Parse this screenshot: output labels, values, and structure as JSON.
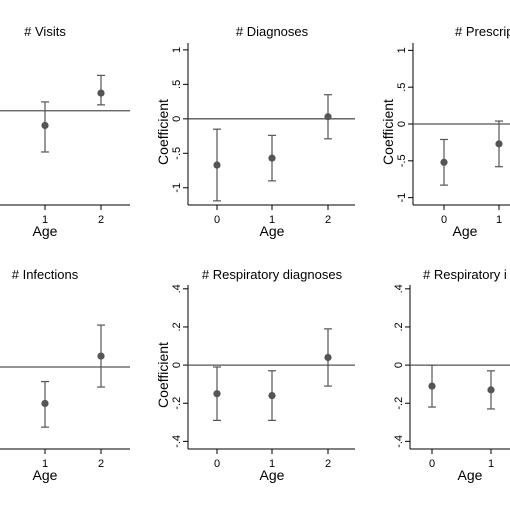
{
  "chart_data": [
    {
      "type": "scatter",
      "title": "# Visits",
      "xlabel": "Age",
      "ylabel": "",
      "categories": [
        "0",
        "1",
        "2"
      ],
      "x_tick_labels": [
        "1",
        "2"
      ],
      "y_tick_labels": [],
      "ylim": [
        -0.32,
        0.23
      ],
      "reference_line": 0.0,
      "estimates": [
        -0.05,
        0.06
      ],
      "ci_lower": [
        -0.14,
        0.02
      ],
      "ci_upper": [
        0.03,
        0.12
      ],
      "error_bars": true,
      "grid": false,
      "legend": false
    },
    {
      "type": "scatter",
      "title": "# Diagnoses",
      "xlabel": "Age",
      "ylabel": "Coefficient",
      "categories": [
        "0",
        "1",
        "2"
      ],
      "x_tick_labels": [
        "0",
        "1",
        "2"
      ],
      "y_tick_labels": [
        "-1",
        "-.5",
        "0",
        ".5",
        "1"
      ],
      "ylim": [
        -1.25,
        1.1
      ],
      "reference_line": 0.0,
      "estimates": [
        -0.67,
        -0.57,
        0.03
      ],
      "ci_lower": [
        -1.19,
        -0.9,
        -0.29
      ],
      "ci_upper": [
        -0.15,
        -0.24,
        0.35
      ],
      "error_bars": true,
      "grid": false,
      "legend": false
    },
    {
      "type": "scatter",
      "title": "# Prescrip",
      "xlabel": "Age",
      "ylabel": "Coefficient",
      "categories": [
        "0",
        "1",
        "2"
      ],
      "x_tick_labels": [
        "0",
        "1"
      ],
      "y_tick_labels": [
        "-1",
        "-.5",
        "0",
        ".5",
        "1"
      ],
      "ylim": [
        -1.1,
        1.1
      ],
      "reference_line": 0.0,
      "estimates": [
        -0.52,
        -0.27
      ],
      "ci_lower": [
        -0.83,
        -0.58
      ],
      "ci_upper": [
        -0.21,
        0.04
      ],
      "error_bars": true,
      "grid": false,
      "legend": false
    },
    {
      "type": "scatter",
      "title": "# Infections",
      "xlabel": "Age",
      "ylabel": "",
      "categories": [
        "0",
        "1",
        "2"
      ],
      "x_tick_labels": [
        "1",
        "2"
      ],
      "y_tick_labels": [],
      "ylim": [
        -0.45,
        0.45
      ],
      "reference_line": 0.0,
      "estimates": [
        -0.2,
        0.06
      ],
      "ci_lower": [
        -0.33,
        -0.11
      ],
      "ci_upper": [
        -0.08,
        0.23
      ],
      "error_bars": true,
      "grid": false,
      "legend": false
    },
    {
      "type": "scatter",
      "title": "# Respiratory diagnoses",
      "xlabel": "Age",
      "ylabel": "Coefficient",
      "categories": [
        "0",
        "1",
        "2"
      ],
      "x_tick_labels": [
        "0",
        "1",
        "2"
      ],
      "y_tick_labels": [
        "-.4",
        "-.2",
        "0",
        ".2",
        ".4"
      ],
      "ylim": [
        -0.44,
        0.42
      ],
      "reference_line": 0.0,
      "estimates": [
        -0.15,
        -0.16,
        0.04
      ],
      "ci_lower": [
        -0.29,
        -0.29,
        -0.11
      ],
      "ci_upper": [
        -0.01,
        -0.03,
        0.19
      ],
      "error_bars": true,
      "grid": false,
      "legend": false
    },
    {
      "type": "scatter",
      "title": "# Respiratory i",
      "xlabel": "Age",
      "ylabel": "",
      "categories": [
        "0",
        "1",
        "2"
      ],
      "x_tick_labels": [
        "0",
        "1"
      ],
      "y_tick_labels": [
        "-.4",
        "-.2",
        "0",
        ".2",
        ".4"
      ],
      "ylim": [
        -0.44,
        0.42
      ],
      "reference_line": 0.0,
      "estimates": [
        -0.11,
        -0.13
      ],
      "ci_lower": [
        -0.22,
        -0.23
      ],
      "ci_upper": [
        0.0,
        -0.03
      ],
      "error_bars": true,
      "grid": false,
      "legend": false
    }
  ],
  "colors": {
    "marker": "#555555",
    "errorbar": "#555555",
    "axis": "#000000",
    "refline": "#555555"
  }
}
